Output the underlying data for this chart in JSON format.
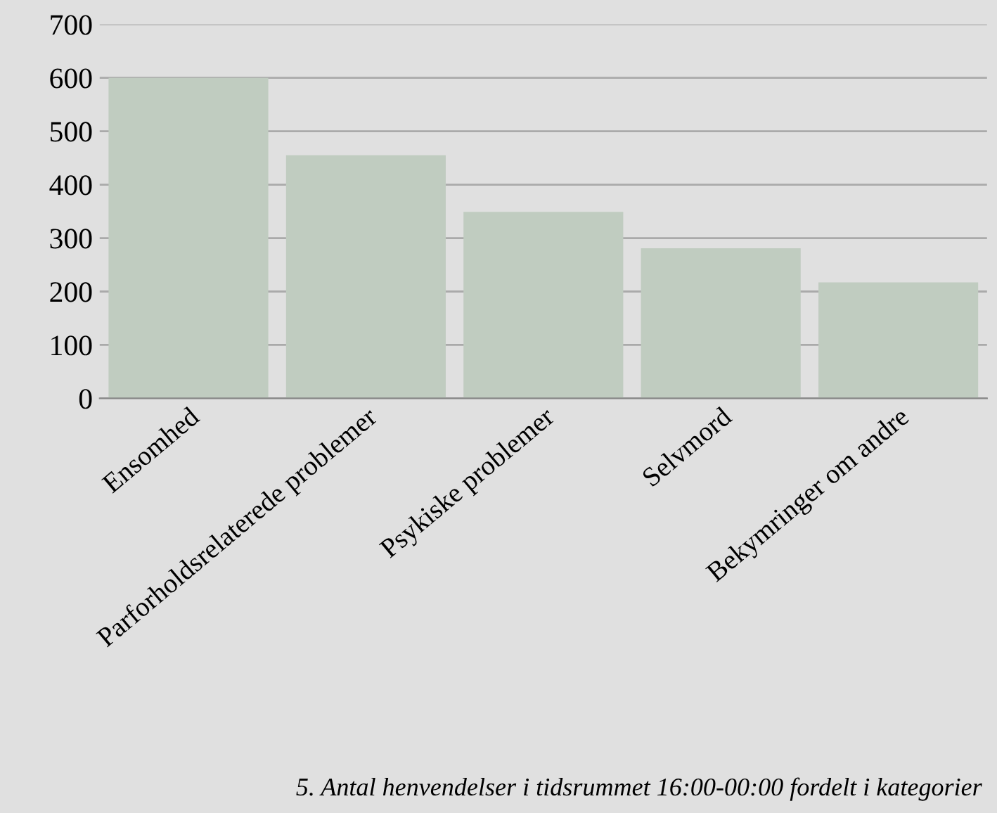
{
  "chart_data": {
    "type": "bar",
    "categories": [
      "Ensomhed",
      "Parforholdsrelaterede problemer",
      "Psykiske problemer",
      "Selvmord",
      "Bekymringer om andre"
    ],
    "values": [
      600,
      455,
      349,
      281,
      217
    ],
    "color": "#c0ccc0",
    "ylim": [
      0,
      700
    ],
    "yticks": [
      0,
      100,
      200,
      300,
      400,
      500,
      600,
      700
    ],
    "grid": "y",
    "annotations": [
      "5. Antal henvendelser i tidsrummet 16:00-00:00 fordelt i kategorier"
    ]
  }
}
